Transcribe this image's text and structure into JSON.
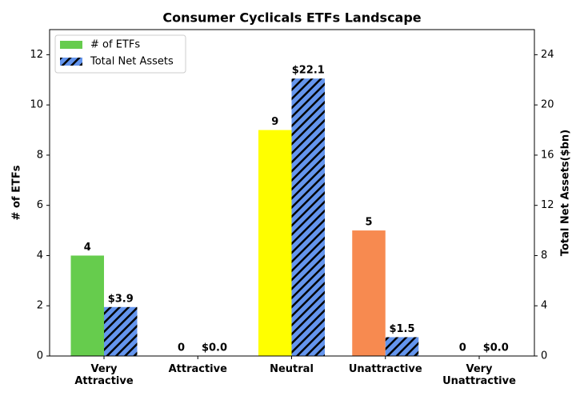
{
  "chart_data": {
    "type": "bar",
    "title": "Consumer Cyclicals ETFs Landscape",
    "ylabel": "# of ETFs",
    "y2label": "Total Net Assets($bn)",
    "categories": [
      "Very\nAttractive",
      "Attractive",
      "Neutral",
      "Unattractive",
      "Very\nUnattractive"
    ],
    "series": [
      {
        "name": "# of ETFs",
        "color": "#66cc4d",
        "colors": [
          "#66cc4d",
          "#b3e04d",
          "#ffff00",
          "#f78a50",
          "#e8372c"
        ],
        "values": [
          4,
          0,
          9,
          5,
          0
        ]
      },
      {
        "name": "Total Net Assets",
        "color": "#6495ed",
        "hatch": true,
        "axis": "y2",
        "values": [
          3.9,
          0,
          22.1,
          1.5,
          0
        ],
        "value_labels": [
          "$3.9",
          "$0.0",
          "$22.1",
          "$1.5",
          "$0.0"
        ]
      }
    ],
    "ylim": [
      0,
      13
    ],
    "yticks": [
      0,
      2,
      4,
      6,
      8,
      10,
      12
    ],
    "y2lim": [
      0,
      26
    ],
    "y2ticks": [
      0,
      4,
      8,
      12,
      16,
      20,
      24
    ],
    "legend": "upper left"
  }
}
